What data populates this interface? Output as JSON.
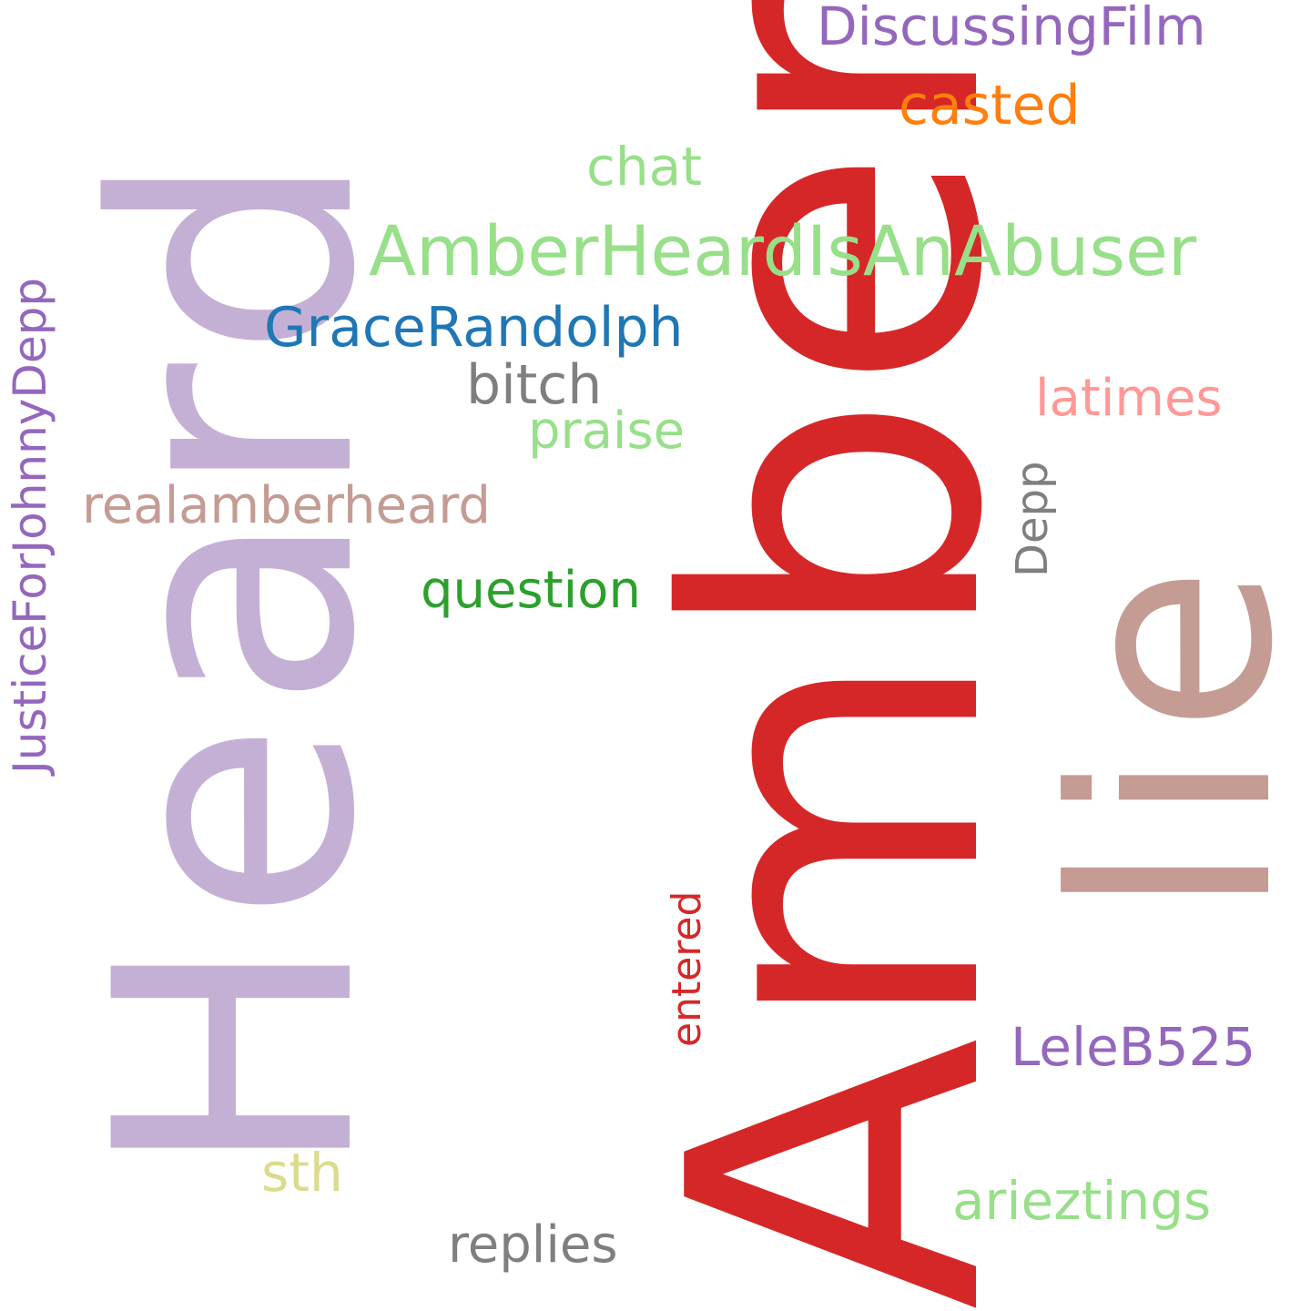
{
  "words": {
    "heard": {
      "text": "Heard",
      "color": "#c5b0d5"
    },
    "amber": {
      "text": "Amber",
      "color": "#d62728"
    },
    "lie": {
      "text": "lie",
      "color": "#c49c94"
    },
    "justicefor": {
      "text": "JusticeForJohnnyDepp",
      "color": "#9467bd"
    },
    "entered": {
      "text": "entered",
      "color": "#d62728"
    },
    "depp": {
      "text": "Depp",
      "color": "#7f7f7f"
    },
    "discussingfilm": {
      "text": "DiscussingFilm",
      "color": "#9467bd"
    },
    "casted": {
      "text": "casted",
      "color": "#ff7f0e"
    },
    "chat": {
      "text": "chat",
      "color": "#98df8a"
    },
    "abuser": {
      "text": "AmberHeardIsAnAbuser",
      "color": "#98df8a"
    },
    "grace": {
      "text": "GraceRandolph",
      "color": "#1f77b4"
    },
    "bitch": {
      "text": "bitch",
      "color": "#7f7f7f"
    },
    "latimes": {
      "text": "latimes",
      "color": "#ff9896"
    },
    "praise": {
      "text": "praise",
      "color": "#98df8a"
    },
    "realamber": {
      "text": "realamberheard",
      "color": "#c49c94"
    },
    "question": {
      "text": "question",
      "color": "#2ca02c"
    },
    "lele": {
      "text": "LeleB525",
      "color": "#9467bd"
    },
    "sth": {
      "text": "sth",
      "color": "#dbdb8d"
    },
    "ariez": {
      "text": "arieztings",
      "color": "#98df8a"
    },
    "replies": {
      "text": "replies",
      "color": "#7f7f7f"
    }
  }
}
